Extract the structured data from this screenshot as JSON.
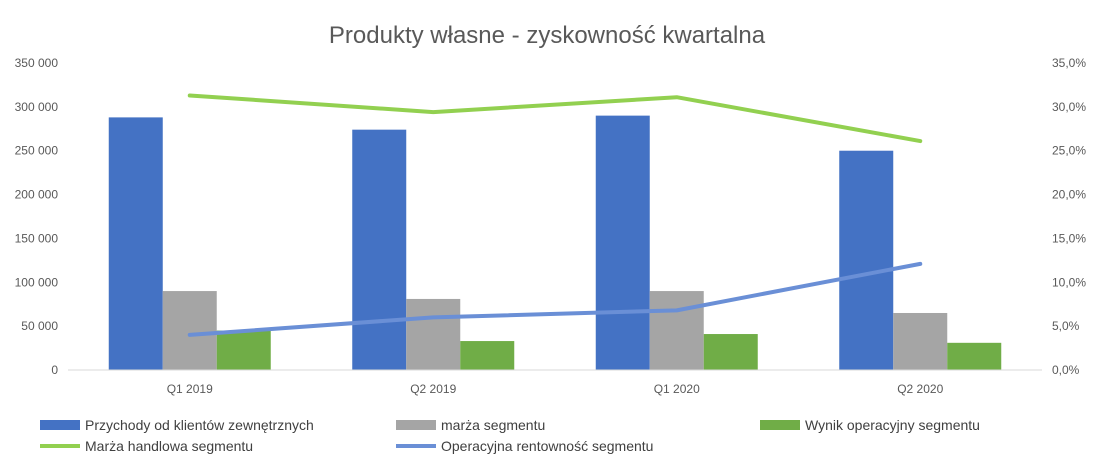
{
  "chart_data": {
    "type": "bar",
    "title": "Produkty własne - zyskowność kwartalna",
    "categories": [
      "Q1 2019",
      "Q2 2019",
      "Q1 2020",
      "Q2 2020"
    ],
    "ylim": [
      0,
      350000
    ],
    "y2lim": [
      0,
      35
    ],
    "y_ticks": [
      "0",
      "50 000",
      "100 000",
      "150 000",
      "200 000",
      "250 000",
      "300 000",
      "350 000"
    ],
    "y2_ticks": [
      "0,0%",
      "5,0%",
      "10,0%",
      "15,0%",
      "20,0%",
      "25,0%",
      "30,0%",
      "35,0%"
    ],
    "grid": false,
    "legend_position": "bottom",
    "bar_series": [
      {
        "name": "Przychody od klientów zewnętrznych",
        "color": "#4472C4",
        "values": [
          288000,
          274000,
          290000,
          250000
        ]
      },
      {
        "name": "marża segmentu",
        "color": "#A5A5A5",
        "values": [
          90000,
          81000,
          90000,
          65000
        ]
      },
      {
        "name": "Wynik operacyjny segmentu",
        "color": "#70AD47",
        "values": [
          45000,
          33000,
          41000,
          31000
        ]
      }
    ],
    "line_series": [
      {
        "name": "Marża handlowa segmentu",
        "color": "#92D050",
        "axis": "right",
        "values": [
          31.3,
          29.4,
          31.1,
          26.1
        ]
      },
      {
        "name": "Operacyjna rentowność segmentu",
        "color": "#6A8FD6",
        "axis": "right",
        "values": [
          4.0,
          6.0,
          6.8,
          12.1
        ]
      }
    ]
  }
}
